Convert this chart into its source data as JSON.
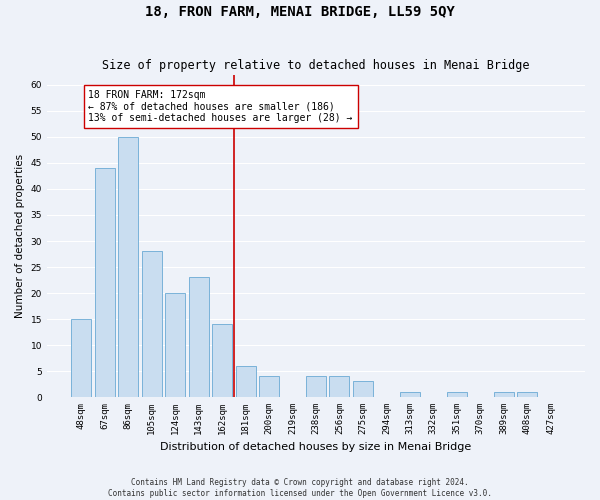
{
  "title": "18, FRON FARM, MENAI BRIDGE, LL59 5QY",
  "subtitle": "Size of property relative to detached houses in Menai Bridge",
  "xlabel": "Distribution of detached houses by size in Menai Bridge",
  "ylabel": "Number of detached properties",
  "categories": [
    "48sqm",
    "67sqm",
    "86sqm",
    "105sqm",
    "124sqm",
    "143sqm",
    "162sqm",
    "181sqm",
    "200sqm",
    "219sqm",
    "238sqm",
    "256sqm",
    "275sqm",
    "294sqm",
    "313sqm",
    "332sqm",
    "351sqm",
    "370sqm",
    "389sqm",
    "408sqm",
    "427sqm"
  ],
  "values": [
    15,
    44,
    50,
    28,
    20,
    23,
    14,
    6,
    4,
    0,
    4,
    4,
    3,
    0,
    1,
    0,
    1,
    0,
    1,
    1,
    0
  ],
  "bar_color": "#c9ddf0",
  "bar_edge_color": "#6aaad4",
  "highlight_line_color": "#cc0000",
  "annotation_text": "18 FRON FARM: 172sqm\n← 87% of detached houses are smaller (186)\n13% of semi-detached houses are larger (28) →",
  "annotation_box_color": "#ffffff",
  "annotation_box_edge_color": "#cc0000",
  "ylim": [
    0,
    62
  ],
  "yticks": [
    0,
    5,
    10,
    15,
    20,
    25,
    30,
    35,
    40,
    45,
    50,
    55,
    60
  ],
  "footer": "Contains HM Land Registry data © Crown copyright and database right 2024.\nContains public sector information licensed under the Open Government Licence v3.0.",
  "bg_color": "#eef2f9",
  "grid_color": "#ffffff",
  "title_fontsize": 10,
  "subtitle_fontsize": 8.5,
  "xlabel_fontsize": 8,
  "ylabel_fontsize": 7.5,
  "tick_fontsize": 6.5,
  "annot_fontsize": 7,
  "footer_fontsize": 5.5
}
